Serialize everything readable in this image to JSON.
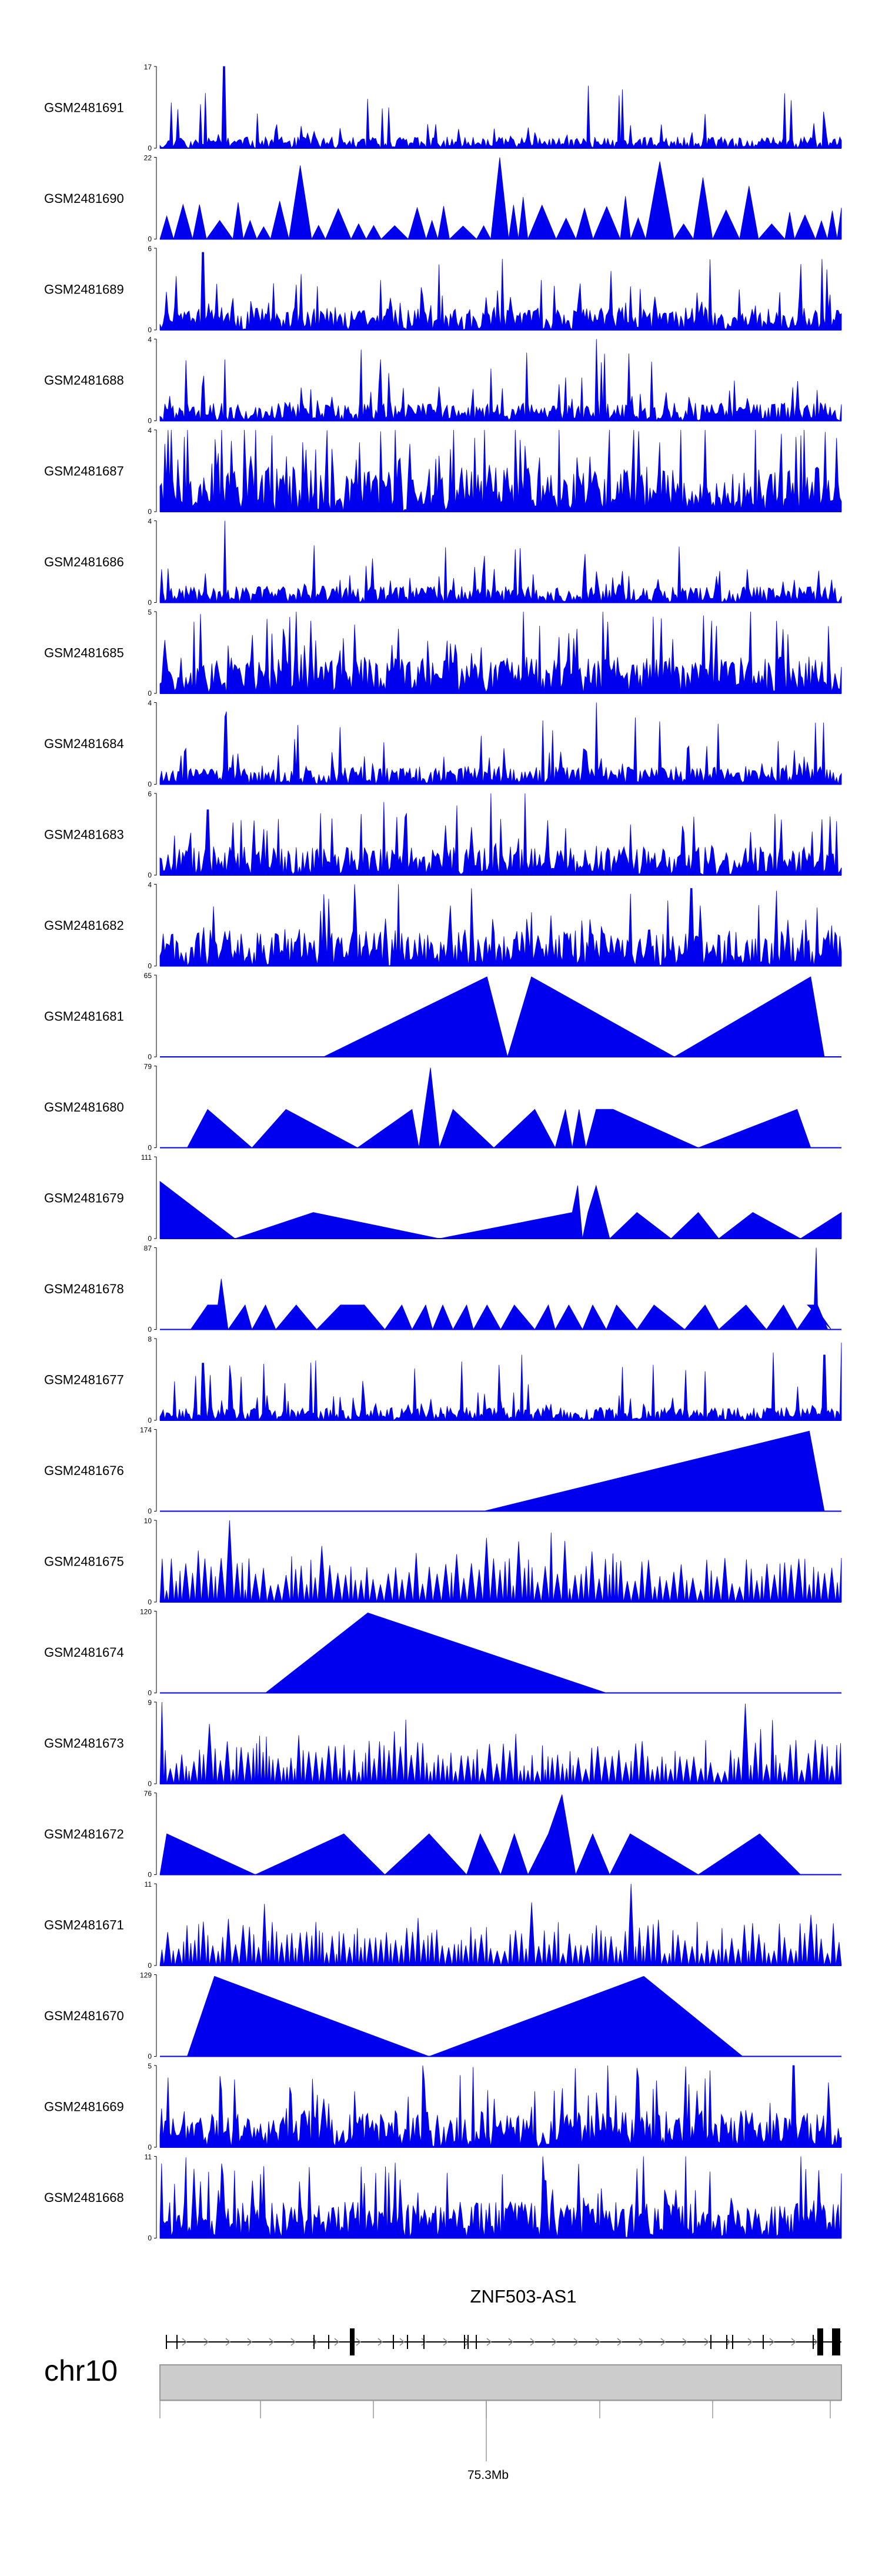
{
  "chart_data": {
    "type": "area",
    "title": "",
    "color": "#0000ee",
    "tracks": [
      {
        "name": "GSM2481691",
        "ymax": 17,
        "ymin": 0,
        "pattern": "dense",
        "seed": 11,
        "base": 0.14,
        "spikes": [
          [
            0.094,
            1.0
          ]
        ]
      },
      {
        "name": "GSM2481690",
        "ymax": 22,
        "ymin": 0,
        "pattern": "wide",
        "seed": 23,
        "base": 0.45,
        "period": 0.026,
        "spikes": [
          [
            0.205,
            0.9
          ],
          [
            0.51,
            1.0
          ],
          [
            0.74,
            0.95
          ]
        ]
      },
      {
        "name": "GSM2481689",
        "ymax": 6,
        "ymin": 0,
        "pattern": "dense",
        "seed": 37,
        "base": 0.28,
        "spikes": [
          [
            0.063,
            0.95
          ],
          [
            0.41,
            0.8
          ]
        ]
      },
      {
        "name": "GSM2481688",
        "ymax": 4,
        "ymin": 0,
        "pattern": "dense",
        "seed": 41,
        "base": 0.22,
        "spikes": [
          [
            0.64,
            1.0
          ],
          [
            0.095,
            0.75
          ]
        ]
      },
      {
        "name": "GSM2481687",
        "ymax": 4,
        "ymin": 0,
        "pattern": "dense",
        "seed": 53,
        "base": 0.55,
        "spikes": [
          [
            0.14,
            1.0
          ],
          [
            0.8,
            1.0
          ]
        ]
      },
      {
        "name": "GSM2481686",
        "ymax": 4,
        "ymin": 0,
        "pattern": "dense",
        "seed": 61,
        "base": 0.2,
        "spikes": [
          [
            0.095,
            1.0
          ]
        ]
      },
      {
        "name": "GSM2481685",
        "ymax": 5,
        "ymin": 0,
        "pattern": "dense",
        "seed": 71,
        "base": 0.45,
        "spikes": [
          [
            0.2,
            1.0
          ],
          [
            0.65,
            1.0
          ]
        ]
      },
      {
        "name": "GSM2481684",
        "ymax": 4,
        "ymin": 0,
        "pattern": "dense",
        "seed": 83,
        "base": 0.22,
        "spikes": [
          [
            0.64,
            1.0
          ]
        ]
      },
      {
        "name": "GSM2481683",
        "ymax": 6,
        "ymin": 0,
        "pattern": "dense",
        "seed": 97,
        "base": 0.35,
        "spikes": [
          [
            0.535,
            1.0
          ],
          [
            0.07,
            0.8
          ]
        ]
      },
      {
        "name": "GSM2481682",
        "ymax": 4,
        "ymin": 0,
        "pattern": "dense",
        "seed": 101,
        "base": 0.45,
        "spikes": [
          [
            0.35,
            1.0
          ],
          [
            0.78,
            0.95
          ]
        ]
      },
      {
        "name": "GSM2481681",
        "ymax": 65,
        "ymin": 0,
        "pattern": "peaks",
        "points": [
          [
            0.24,
            0
          ],
          [
            0.48,
            0.98
          ],
          [
            0.51,
            0
          ],
          [
            0.545,
            0.98
          ],
          [
            0.755,
            0
          ],
          [
            0.955,
            0.98
          ],
          [
            0.975,
            0
          ]
        ]
      },
      {
        "name": "GSM2481680",
        "ymax": 79,
        "ymin": 0,
        "pattern": "peaks",
        "points": [
          [
            0.04,
            0
          ],
          [
            0.07,
            0.47
          ],
          [
            0.135,
            0
          ],
          [
            0.185,
            0.47
          ],
          [
            0.29,
            0
          ],
          [
            0.37,
            0.47
          ],
          [
            0.38,
            0
          ],
          [
            0.397,
            0.98
          ],
          [
            0.41,
            0
          ],
          [
            0.43,
            0.47
          ],
          [
            0.49,
            0
          ],
          [
            0.55,
            0.47
          ],
          [
            0.58,
            0
          ],
          [
            0.595,
            0.47
          ],
          [
            0.605,
            0
          ],
          [
            0.615,
            0.47
          ],
          [
            0.625,
            0
          ],
          [
            0.64,
            0.47
          ],
          [
            0.665,
            0.47
          ],
          [
            0.79,
            0
          ],
          [
            0.935,
            0.47
          ],
          [
            0.955,
            0
          ]
        ]
      },
      {
        "name": "GSM2481679",
        "ymax": 111,
        "ymin": 0,
        "pattern": "peaks",
        "points": [
          [
            0.0,
            0.7
          ],
          [
            0.11,
            0
          ],
          [
            0.225,
            0.32
          ],
          [
            0.41,
            0
          ],
          [
            0.605,
            0.32
          ],
          [
            0.613,
            0.65
          ],
          [
            0.62,
            0
          ],
          [
            0.628,
            0.32
          ],
          [
            0.64,
            0.65
          ],
          [
            0.66,
            0
          ],
          [
            0.7,
            0.32
          ],
          [
            0.75,
            0
          ],
          [
            0.79,
            0.32
          ],
          [
            0.82,
            0
          ],
          [
            0.87,
            0.32
          ],
          [
            0.94,
            0
          ],
          [
            1.0,
            0.32
          ]
        ]
      },
      {
        "name": "GSM2481678",
        "ymax": 87,
        "ymin": 0,
        "pattern": "peaks",
        "points": [
          [
            0.045,
            0
          ],
          [
            0.07,
            0.3
          ],
          [
            0.085,
            0.3
          ],
          [
            0.09,
            0.62
          ],
          [
            0.1,
            0
          ],
          [
            0.125,
            0.3
          ],
          [
            0.135,
            0
          ],
          [
            0.155,
            0.3
          ],
          [
            0.17,
            0
          ],
          [
            0.2,
            0.3
          ],
          [
            0.23,
            0
          ],
          [
            0.265,
            0.3
          ],
          [
            0.3,
            0.3
          ],
          [
            0.33,
            0
          ],
          [
            0.355,
            0.3
          ],
          [
            0.37,
            0
          ],
          [
            0.39,
            0.3
          ],
          [
            0.4,
            0
          ],
          [
            0.415,
            0.3
          ],
          [
            0.43,
            0
          ],
          [
            0.45,
            0.3
          ],
          [
            0.46,
            0
          ],
          [
            0.48,
            0.3
          ],
          [
            0.5,
            0
          ],
          [
            0.52,
            0.3
          ],
          [
            0.55,
            0
          ],
          [
            0.57,
            0.3
          ],
          [
            0.58,
            0
          ],
          [
            0.6,
            0.3
          ],
          [
            0.62,
            0
          ],
          [
            0.635,
            0.3
          ],
          [
            0.655,
            0
          ],
          [
            0.67,
            0.3
          ],
          [
            0.7,
            0
          ],
          [
            0.725,
            0.3
          ],
          [
            0.77,
            0
          ],
          [
            0.8,
            0.3
          ],
          [
            0.82,
            0
          ],
          [
            0.86,
            0.3
          ],
          [
            0.89,
            0
          ],
          [
            0.915,
            0.3
          ],
          [
            0.935,
            0
          ],
          [
            0.96,
            0.3
          ],
          [
            0.985,
            0
          ],
          [
            0.95,
            0.3
          ],
          [
            0.96,
            0.3
          ],
          [
            0.963,
            1.0
          ],
          [
            0.965,
            0.3
          ],
          [
            0.98,
            0
          ]
        ]
      },
      {
        "name": "GSM2481677",
        "ymax": 8,
        "ymin": 0,
        "pattern": "dense",
        "seed": 131,
        "base": 0.16,
        "spikes": [
          [
            0.063,
            0.7
          ],
          [
            0.975,
            0.8
          ],
          [
            1.0,
            0.95
          ],
          [
            0.8,
            0.6
          ]
        ]
      },
      {
        "name": "GSM2481676",
        "ymax": 174,
        "ymin": 0,
        "pattern": "peaks",
        "points": [
          [
            0.475,
            0
          ],
          [
            0.953,
            0.98
          ],
          [
            0.975,
            0
          ]
        ]
      },
      {
        "name": "GSM2481675",
        "ymax": 10,
        "ymin": 0,
        "pattern": "wide",
        "seed": 151,
        "base": 0.45,
        "period": 0.008,
        "spikes": [
          [
            0.1,
            1.0
          ],
          [
            0.575,
            0.85
          ]
        ]
      },
      {
        "name": "GSM2481674",
        "ymax": 120,
        "ymin": 0,
        "pattern": "peaks",
        "points": [
          [
            0.155,
            0
          ],
          [
            0.305,
            0.98
          ],
          [
            0.655,
            0
          ]
        ]
      },
      {
        "name": "GSM2481673",
        "ymax": 9,
        "ymin": 0,
        "pattern": "wide",
        "seed": 173,
        "base": 0.45,
        "period": 0.007,
        "spikes": [
          [
            0.855,
            0.98
          ],
          [
            0.0,
            1.0
          ]
        ]
      },
      {
        "name": "GSM2481672",
        "ymax": 76,
        "ymin": 0,
        "pattern": "peaks",
        "points": [
          [
            0.0,
            0
          ],
          [
            0.01,
            0.5
          ],
          [
            0.14,
            0
          ],
          [
            0.27,
            0.5
          ],
          [
            0.33,
            0
          ],
          [
            0.395,
            0.5
          ],
          [
            0.45,
            0
          ],
          [
            0.47,
            0.5
          ],
          [
            0.5,
            0
          ],
          [
            0.52,
            0.5
          ],
          [
            0.54,
            0
          ],
          [
            0.57,
            0.5
          ],
          [
            0.59,
            0.98
          ],
          [
            0.61,
            0
          ],
          [
            0.635,
            0.5
          ],
          [
            0.66,
            0
          ],
          [
            0.69,
            0.5
          ],
          [
            0.79,
            0
          ],
          [
            0.88,
            0.5
          ],
          [
            0.94,
            0
          ]
        ]
      },
      {
        "name": "GSM2481671",
        "ymax": 11,
        "ymin": 0,
        "pattern": "wide",
        "seed": 197,
        "base": 0.45,
        "period": 0.007,
        "spikes": [
          [
            0.69,
            1.0
          ],
          [
            0.955,
            0.62
          ]
        ]
      },
      {
        "name": "GSM2481670",
        "ymax": 129,
        "ymin": 0,
        "pattern": "peaks",
        "points": [
          [
            0.04,
            0
          ],
          [
            0.08,
            0.98
          ],
          [
            0.395,
            0
          ],
          [
            0.71,
            0.98
          ],
          [
            0.855,
            0
          ]
        ]
      },
      {
        "name": "GSM2481669",
        "ymax": 5,
        "ymin": 0,
        "pattern": "dense",
        "seed": 211,
        "base": 0.45,
        "spikes": [
          [
            0.93,
            1.0
          ]
        ]
      },
      {
        "name": "GSM2481668",
        "ymax": 11,
        "ymin": 0,
        "pattern": "dense",
        "seed": 223,
        "base": 0.45,
        "spikes": [
          [
            0.94,
            1.0
          ],
          [
            0.7,
            0.85
          ]
        ]
      }
    ],
    "gene_label": "ZNF503-AS1",
    "chromosome": "chr10",
    "genome_tick_label": "75.3Mb"
  }
}
